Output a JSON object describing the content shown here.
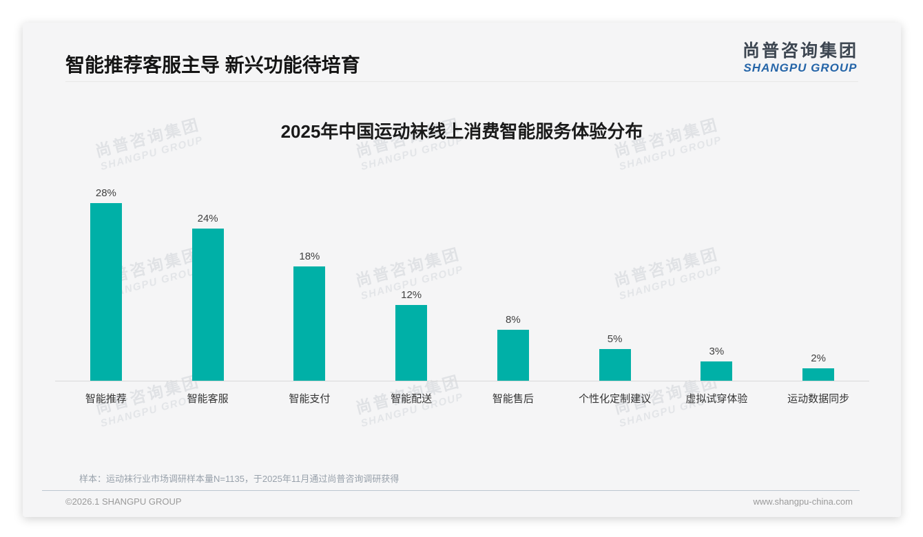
{
  "header": {
    "title": "智能推荐客服主导 新兴功能待培育"
  },
  "logo": {
    "cn": "尚普咨询集团",
    "en": "SHANGPU GROUP"
  },
  "watermark": {
    "cn": "尚普咨询集团",
    "en": "SHANGPU GROUP"
  },
  "chart_data": {
    "type": "bar",
    "title": "2025年中国运动袜线上消费智能服务体验分布",
    "categories": [
      "智能推荐",
      "智能客服",
      "智能支付",
      "智能配送",
      "智能售后",
      "个性化定制建议",
      "虚拟试穿体验",
      "运动数据同步"
    ],
    "values": [
      28,
      24,
      18,
      12,
      8,
      5,
      3,
      2
    ],
    "labels": [
      "28%",
      "24%",
      "18%",
      "12%",
      "8%",
      "5%",
      "3%",
      "2%"
    ],
    "unit": "%",
    "ylim": [
      0,
      30
    ],
    "grid": false,
    "legend": false,
    "bar_color": "#00b0a7",
    "baseline_color": "#d9d9d9"
  },
  "note": "样本：运动袜行业市场调研样本量N=1135，于2025年11月通过尚普咨询调研获得",
  "footer": {
    "left": "©2026.1 SHANGPU GROUP",
    "right": "www.shangpu-china.com"
  },
  "colors": {
    "accent": "#00b0a7",
    "logo_blue": "#2565a8"
  }
}
